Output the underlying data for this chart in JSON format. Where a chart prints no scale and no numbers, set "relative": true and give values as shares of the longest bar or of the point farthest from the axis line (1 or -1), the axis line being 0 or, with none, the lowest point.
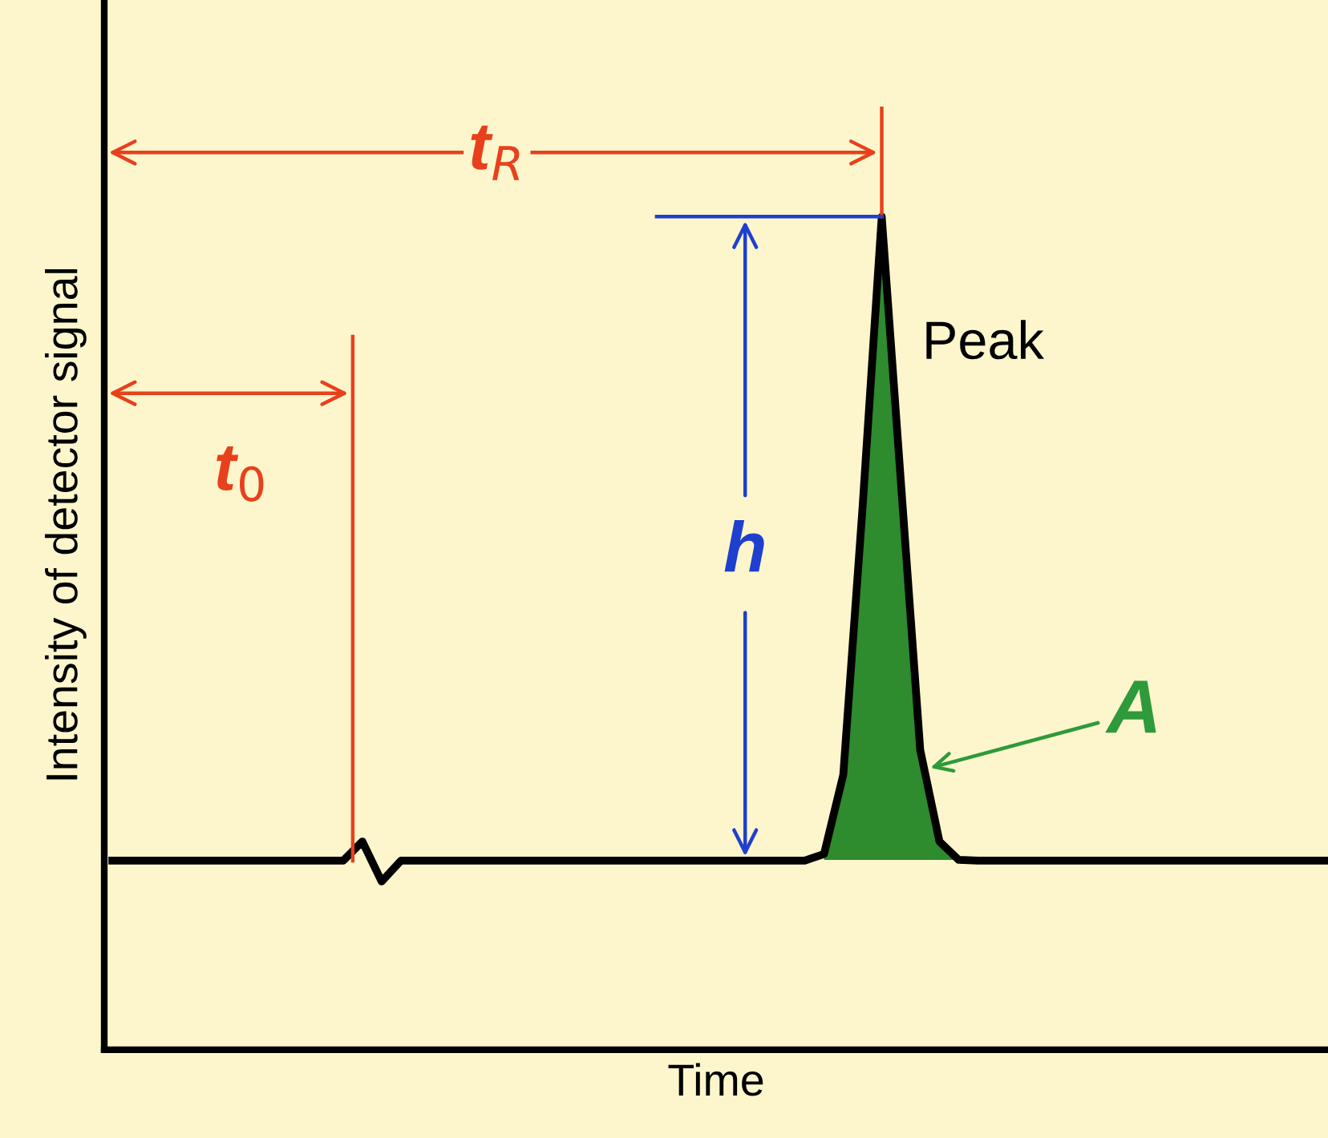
{
  "chart_data": {
    "type": "line",
    "relative": true,
    "xlabel": "Time",
    "ylabel": "Intensity of detector signal",
    "categories": [
      null,
      null,
      null,
      null,
      null,
      null,
      null,
      null,
      null,
      null,
      null,
      null,
      null,
      null,
      null,
      null,
      null,
      null,
      null,
      null,
      null,
      null,
      null,
      null,
      null,
      null,
      null,
      null,
      null,
      null,
      null,
      null,
      null,
      null,
      null,
      null,
      null,
      null,
      null,
      null,
      null,
      null,
      null,
      null,
      null,
      null,
      null,
      null,
      null,
      null,
      null,
      null,
      null,
      null,
      null,
      null,
      null,
      null,
      null,
      null,
      null,
      null,
      null,
      null
    ],
    "series": [
      {
        "type": "area",
        "color": "#2e8b2e",
        "values": [
          null,
          null,
          null,
          null,
          null,
          null,
          null,
          null,
          null,
          null,
          null,
          null,
          null,
          null,
          null,
          null,
          null,
          null,
          null,
          null,
          null,
          null,
          null,
          null,
          null,
          null,
          null,
          null,
          null,
          null,
          null,
          null,
          null,
          null,
          null,
          null,
          null,
          0.235,
          0.33,
          0.65,
          1.0,
          0.68,
          0.36,
          0.25,
          0.228,
          null,
          null,
          null,
          null,
          null,
          null,
          null,
          null,
          null,
          null,
          null,
          null,
          null,
          null,
          null,
          null,
          null,
          null,
          null
        ]
      },
      {
        "color": "#000000",
        "values": [
          0.227,
          0.227,
          0.227,
          0.227,
          0.227,
          0.227,
          0.227,
          0.227,
          0.227,
          0.227,
          0.227,
          0.227,
          0.227,
          0.25,
          0.202,
          0.227,
          0.227,
          0.227,
          0.227,
          0.227,
          0.227,
          0.227,
          0.227,
          0.227,
          0.227,
          0.227,
          0.227,
          0.227,
          0.227,
          0.227,
          0.227,
          0.227,
          0.227,
          0.227,
          0.227,
          0.227,
          0.227,
          0.235,
          0.33,
          0.65,
          1.0,
          0.68,
          0.36,
          0.25,
          0.228,
          0.227,
          0.227,
          0.227,
          0.227,
          0.227,
          0.227,
          0.227,
          0.227,
          0.227,
          0.227,
          0.227,
          0.227,
          0.227,
          0.227,
          0.227,
          0.227,
          0.227,
          0.227,
          0.227
        ]
      }
    ],
    "annotations": [
      "t$_{R}$",
      "t$_{0}$",
      "h",
      "Peak",
      "A"
    ]
  }
}
